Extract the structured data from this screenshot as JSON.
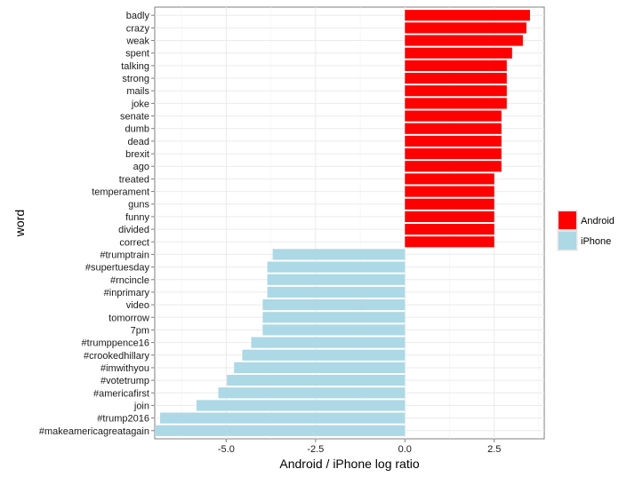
{
  "chart_data": {
    "type": "bar",
    "orientation": "horizontal",
    "title": "",
    "xlabel": "Android / iPhone log ratio",
    "ylabel": "word",
    "xlim": [
      -7.0,
      3.9
    ],
    "x_ticks": [
      -5.0,
      -2.5,
      0.0,
      2.5
    ],
    "x_tick_labels": [
      "-5.0",
      "-2.5",
      "0.0",
      "2.5"
    ],
    "grid": true,
    "legend_position": "right",
    "categories": [
      "badly",
      "crazy",
      "weak",
      "spent",
      "talking",
      "strong",
      "mails",
      "joke",
      "senate",
      "dumb",
      "dead",
      "brexit",
      "ago",
      "treated",
      "temperament",
      "guns",
      "funny",
      "divided",
      "correct",
      "#trumptrain",
      "#supertuesday",
      "#rncincle",
      "#inprimary",
      "video",
      "tomorrow",
      "7pm",
      "#trumppence16",
      "#crookedhillary",
      "#imwithyou",
      "#votetrump",
      "#americafirst",
      "join",
      "#trump2016",
      "#makeamericagreatagain"
    ],
    "values": [
      3.5,
      3.4,
      3.3,
      3.0,
      2.85,
      2.85,
      2.85,
      2.85,
      2.7,
      2.7,
      2.7,
      2.7,
      2.7,
      2.5,
      2.5,
      2.5,
      2.5,
      2.5,
      2.5,
      -3.7,
      -3.85,
      -3.85,
      -3.85,
      -3.98,
      -3.98,
      -3.98,
      -4.3,
      -4.55,
      -4.78,
      -4.98,
      -5.22,
      -5.83,
      -6.85,
      -7.0
    ],
    "series": [
      {
        "name": "Android",
        "color": "#ff0000"
      },
      {
        "name": "iPhone",
        "color": "#add8e6"
      }
    ]
  }
}
